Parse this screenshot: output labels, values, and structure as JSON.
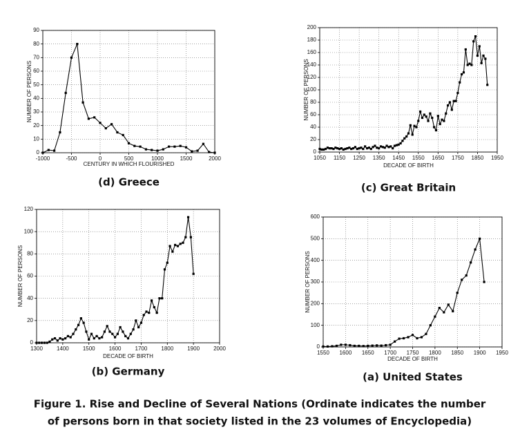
{
  "chart_data": [
    {
      "type": "line",
      "title": "(d) Greece",
      "xlabel": "CENTURY IN WHICH FLOURISHED",
      "ylabel": "NUMBER OF PERSONS",
      "color": "#000000",
      "grid": true,
      "x": [
        -1000,
        -900,
        -800,
        -700,
        -600,
        -500,
        -400,
        -300,
        -200,
        -100,
        0,
        100,
        200,
        300,
        400,
        500,
        600,
        700,
        800,
        900,
        1000,
        1100,
        1200,
        1300,
        1400,
        1500,
        1600,
        1700,
        1800,
        1900,
        2000
      ],
      "values": [
        0,
        2,
        1.5,
        15,
        44,
        70,
        80,
        37,
        25,
        26,
        22,
        18,
        21,
        15,
        13,
        7,
        5,
        4.5,
        2.5,
        2,
        1.5,
        2.5,
        4.5,
        4.5,
        5,
        4,
        1,
        1.5,
        6.5,
        0.5,
        0
      ],
      "xlim": [
        -1000,
        2000
      ],
      "xticks": [
        -1000,
        -500,
        0,
        500,
        1000,
        1500,
        2000
      ],
      "ylim": [
        0,
        90
      ],
      "yticks": [
        0,
        10,
        20,
        30,
        40,
        50,
        60,
        70,
        80,
        90
      ]
    },
    {
      "type": "line",
      "title": "(c) Great Britain",
      "xlabel": "DECADE OF BIRTH",
      "ylabel": "NUMBER OF PERSONS",
      "color": "#000000",
      "grid": true,
      "x": [
        1050,
        1060,
        1070,
        1080,
        1090,
        1100,
        1110,
        1120,
        1130,
        1140,
        1150,
        1160,
        1170,
        1180,
        1190,
        1200,
        1210,
        1220,
        1230,
        1240,
        1250,
        1260,
        1270,
        1280,
        1290,
        1300,
        1310,
        1320,
        1330,
        1340,
        1350,
        1360,
        1370,
        1380,
        1390,
        1400,
        1410,
        1420,
        1430,
        1440,
        1450,
        1460,
        1470,
        1480,
        1490,
        1500,
        1510,
        1520,
        1530,
        1540,
        1550,
        1560,
        1570,
        1580,
        1590,
        1600,
        1610,
        1620,
        1630,
        1640,
        1650,
        1660,
        1670,
        1680,
        1690,
        1700,
        1710,
        1720,
        1730,
        1740,
        1750,
        1760,
        1770,
        1780,
        1790,
        1800,
        1810,
        1820,
        1830,
        1840,
        1850,
        1860,
        1870,
        1880,
        1890,
        1900
      ],
      "values": [
        5,
        4,
        4,
        5,
        7,
        6,
        6,
        5,
        7,
        6,
        5,
        6,
        4,
        5,
        6,
        7,
        5,
        6,
        8,
        5,
        6,
        7,
        5,
        9,
        6,
        7,
        5,
        8,
        10,
        7,
        6,
        9,
        8,
        7,
        10,
        8,
        9,
        6,
        10,
        11,
        12,
        14,
        18,
        22,
        25,
        30,
        43,
        28,
        42,
        40,
        50,
        65,
        55,
        60,
        57,
        50,
        62,
        55,
        40,
        35,
        58,
        45,
        52,
        50,
        62,
        75,
        80,
        68,
        82,
        82,
        95,
        112,
        125,
        128,
        165,
        140,
        142,
        140,
        178,
        186,
        155,
        170,
        143,
        155,
        150,
        108
      ],
      "xlim": [
        1050,
        1950
      ],
      "xticks": [
        1050,
        1150,
        1250,
        1350,
        1450,
        1550,
        1650,
        1750,
        1850,
        1950
      ],
      "ylim": [
        0,
        200
      ],
      "yticks": [
        0,
        20,
        40,
        60,
        80,
        100,
        120,
        140,
        160,
        180,
        200
      ]
    },
    {
      "type": "line",
      "title": "(b) Germany",
      "xlabel": "DECADE OF BIRTH",
      "ylabel": "NUMBER OF PERSONS",
      "color": "#000000",
      "grid": true,
      "x": [
        1300,
        1310,
        1320,
        1330,
        1340,
        1350,
        1360,
        1370,
        1380,
        1390,
        1400,
        1410,
        1420,
        1430,
        1440,
        1450,
        1460,
        1470,
        1480,
        1490,
        1500,
        1510,
        1520,
        1530,
        1540,
        1550,
        1560,
        1570,
        1580,
        1590,
        1600,
        1610,
        1620,
        1630,
        1640,
        1650,
        1660,
        1670,
        1680,
        1690,
        1700,
        1710,
        1720,
        1730,
        1740,
        1750,
        1760,
        1770,
        1780,
        1790,
        1800,
        1810,
        1820,
        1830,
        1840,
        1850,
        1860,
        1870,
        1880,
        1890,
        1900
      ],
      "values": [
        0,
        0,
        0,
        0,
        0,
        1,
        3,
        4,
        2,
        4,
        3,
        4,
        6,
        5,
        8,
        12,
        16,
        22,
        18,
        10,
        3,
        8,
        4,
        6,
        4,
        5,
        10,
        15,
        10,
        8,
        5,
        8,
        14,
        10,
        6,
        4,
        8,
        12,
        20,
        14,
        18,
        25,
        28,
        27,
        38,
        32,
        27,
        40,
        40,
        66,
        72,
        87,
        82,
        88,
        87,
        89,
        90,
        95,
        113,
        95,
        62
      ],
      "xlim": [
        1300,
        2000
      ],
      "xticks": [
        1300,
        1400,
        1500,
        1600,
        1700,
        1800,
        1900,
        2000
      ],
      "ylim": [
        0,
        120
      ],
      "yticks": [
        0,
        20,
        40,
        60,
        80,
        100,
        120
      ]
    },
    {
      "type": "line",
      "title": "(a) United States",
      "xlabel": "DECADE OF BIRTH",
      "ylabel": "NUMBER OF PERSONS",
      "color": "#000000",
      "grid": true,
      "x": [
        1550,
        1560,
        1570,
        1580,
        1590,
        1600,
        1610,
        1620,
        1630,
        1640,
        1650,
        1660,
        1670,
        1680,
        1690,
        1700,
        1710,
        1720,
        1730,
        1740,
        1750,
        1760,
        1770,
        1780,
        1790,
        1800,
        1810,
        1820,
        1830,
        1840,
        1850,
        1860,
        1870,
        1880,
        1890,
        1900,
        1910
      ],
      "values": [
        2,
        2,
        3,
        5,
        10,
        10,
        8,
        5,
        5,
        4,
        5,
        6,
        7,
        6,
        8,
        10,
        25,
        38,
        40,
        45,
        55,
        40,
        45,
        60,
        100,
        140,
        180,
        160,
        195,
        165,
        250,
        310,
        330,
        390,
        450,
        500,
        300
      ],
      "xlim": [
        1550,
        1950
      ],
      "xticks": [
        1550,
        1600,
        1650,
        1700,
        1750,
        1800,
        1850,
        1900,
        1950
      ],
      "ylim": [
        0,
        600
      ],
      "yticks": [
        0,
        100,
        200,
        300,
        400,
        500,
        600
      ]
    }
  ],
  "caption": [
    "Figure 1. Rise and Decline of Several Nations (Ordinate indicates the number",
    "of persons born in that society listed in the 23 volumes of Encyclopedia)"
  ]
}
